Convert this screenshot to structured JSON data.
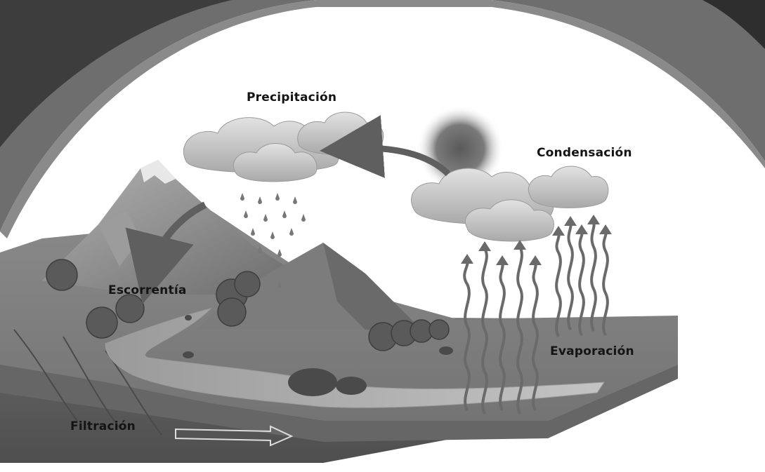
{
  "labels": {
    "precipitation": "Precipitación",
    "condensation": "Condensación",
    "runoff": "Escorrentía",
    "evaporation": "Evaporación",
    "infiltration": "Filtración"
  },
  "colors": {
    "background_frame": "#6e6e6e",
    "sky": "#ffffff",
    "cloud": "#c9c9c9",
    "ground_surface": "#7e7e7e",
    "ground_side": "#5a5a5a",
    "mountain": "#8d8d8d",
    "water": "#b3b3b3",
    "arrow": "#5f5f5f"
  },
  "icons": [
    "sun-icon",
    "rain-drop-icon",
    "evaporation-arrow-icon",
    "curved-arrow-icon",
    "outline-arrow-icon",
    "shrub-icon",
    "rock-icon"
  ]
}
